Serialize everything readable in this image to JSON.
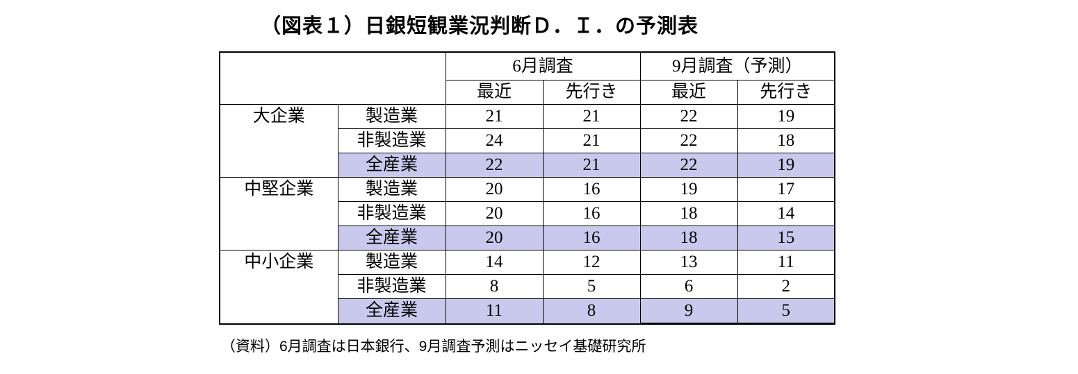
{
  "title": "（図表１）日銀短観業況判断Ｄ．Ｉ．の予測表",
  "source_note": "（資料）6月調査は日本銀行、9月調査予測はニッセイ基礎研究所",
  "colors": {
    "highlight_row": "#c9c9ed",
    "border": "#000000",
    "title_text": "#000000",
    "background": "#ffffff"
  },
  "table": {
    "col_groups": [
      "6月調査",
      "9月調査（予測）"
    ],
    "sub_headers": [
      "最近",
      "先行き",
      "最近",
      "先行き"
    ],
    "rows": [
      {
        "group": "大企業",
        "industry": "製造業",
        "values": [
          21,
          21,
          22,
          19
        ],
        "highlight": false
      },
      {
        "group": "",
        "industry": "非製造業",
        "values": [
          24,
          21,
          22,
          18
        ],
        "highlight": false
      },
      {
        "group": "",
        "industry": "全産業",
        "values": [
          22,
          21,
          22,
          19
        ],
        "highlight": true
      },
      {
        "group": "中堅企業",
        "industry": "製造業",
        "values": [
          20,
          16,
          19,
          17
        ],
        "highlight": false
      },
      {
        "group": "",
        "industry": "非製造業",
        "values": [
          20,
          16,
          18,
          14
        ],
        "highlight": false
      },
      {
        "group": "",
        "industry": "全産業",
        "values": [
          20,
          16,
          18,
          15
        ],
        "highlight": true
      },
      {
        "group": "中小企業",
        "industry": "製造業",
        "values": [
          14,
          12,
          13,
          11
        ],
        "highlight": false
      },
      {
        "group": "",
        "industry": "非製造業",
        "values": [
          8,
          5,
          6,
          2
        ],
        "highlight": false
      },
      {
        "group": "",
        "industry": "全産業",
        "values": [
          11,
          8,
          9,
          5
        ],
        "highlight": true
      }
    ]
  },
  "chart_data": {
    "type": "table",
    "title": "（図表１）日銀短観業況判断Ｄ．Ｉ．の予測表",
    "column_groups": [
      "6月調査",
      "9月調査（予測）"
    ],
    "sub_columns": [
      "最近",
      "先行き",
      "最近",
      "先行き"
    ],
    "row_groups": [
      "大企業",
      "中堅企業",
      "中小企業"
    ],
    "rows": [
      [
        "大企業",
        "製造業",
        21,
        21,
        22,
        19
      ],
      [
        "大企業",
        "非製造業",
        24,
        21,
        22,
        18
      ],
      [
        "大企業",
        "全産業",
        22,
        21,
        22,
        19
      ],
      [
        "中堅企業",
        "製造業",
        20,
        16,
        19,
        17
      ],
      [
        "中堅企業",
        "非製造業",
        20,
        16,
        18,
        14
      ],
      [
        "中堅企業",
        "全産業",
        20,
        16,
        18,
        15
      ],
      [
        "中小企業",
        "製造業",
        14,
        12,
        13,
        11
      ],
      [
        "中小企業",
        "非製造業",
        8,
        5,
        6,
        2
      ],
      [
        "中小企業",
        "全産業",
        11,
        8,
        9,
        5
      ]
    ],
    "highlighted_rows": [
      2,
      5,
      8
    ],
    "source": "（資料）6月調査は日本銀行、9月調査予測はニッセイ基礎研究所"
  }
}
